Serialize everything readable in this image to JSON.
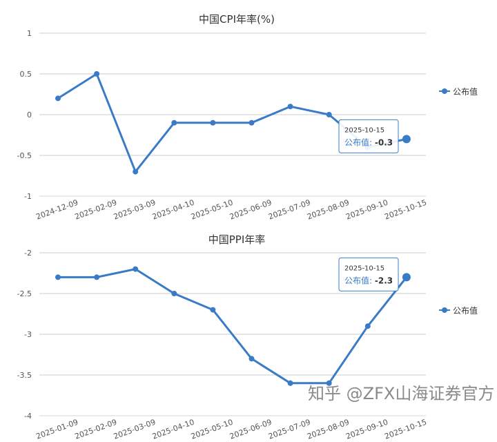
{
  "chart_data": [
    {
      "type": "line",
      "title": "中国CPI年率(%)",
      "legend": "公布值",
      "legend_position": "right",
      "categories": [
        "2024-12-09",
        "2025-02-09",
        "2025-03-09",
        "2025-04-10",
        "2025-05-10",
        "2025-06-09",
        "2025-07-09",
        "2025-08-09",
        "2025-09-10",
        "2025-10-15"
      ],
      "values": [
        0.2,
        0.5,
        -0.7,
        -0.1,
        -0.1,
        -0.1,
        0.1,
        0,
        -0.4,
        -0.3
      ],
      "ylim": [
        -1,
        1
      ],
      "yticks": [
        1,
        0.5,
        0,
        -0.5,
        -1
      ],
      "ytick_labels": [
        "1",
        "0.5",
        "0",
        "-0.5",
        "-1"
      ],
      "grid": true,
      "tooltip": {
        "date": "2025-10-15",
        "label": "公布值: ",
        "value": "-0.3"
      }
    },
    {
      "type": "line",
      "title": "中国PPI年率",
      "legend": "公布值",
      "legend_position": "right",
      "categories": [
        "2025-01-09",
        "2025-02-09",
        "2025-03-09",
        "2025-04-10",
        "2025-05-10",
        "2025-06-09",
        "2025-07-09",
        "2025-08-09",
        "2025-09-10",
        "2025-10-15"
      ],
      "values": [
        -2.3,
        -2.3,
        -2.2,
        -2.5,
        -2.7,
        -3.3,
        -3.6,
        -3.6,
        -2.9,
        -2.3
      ],
      "ylim": [
        -4,
        -2
      ],
      "yticks": [
        -2,
        -2.5,
        -3,
        -3.5,
        -4
      ],
      "ytick_labels": [
        "-2",
        "-2.5",
        "-3",
        "-3.5",
        "-4"
      ],
      "grid": true,
      "tooltip": {
        "date": "2025-10-15",
        "label": "公布值: ",
        "value": "-2.3"
      }
    }
  ],
  "colors": {
    "series": "#3a7bc8",
    "grid": "#cccccc",
    "text": "#555555"
  },
  "watermark": "知乎 @ZFX山海证券官方"
}
